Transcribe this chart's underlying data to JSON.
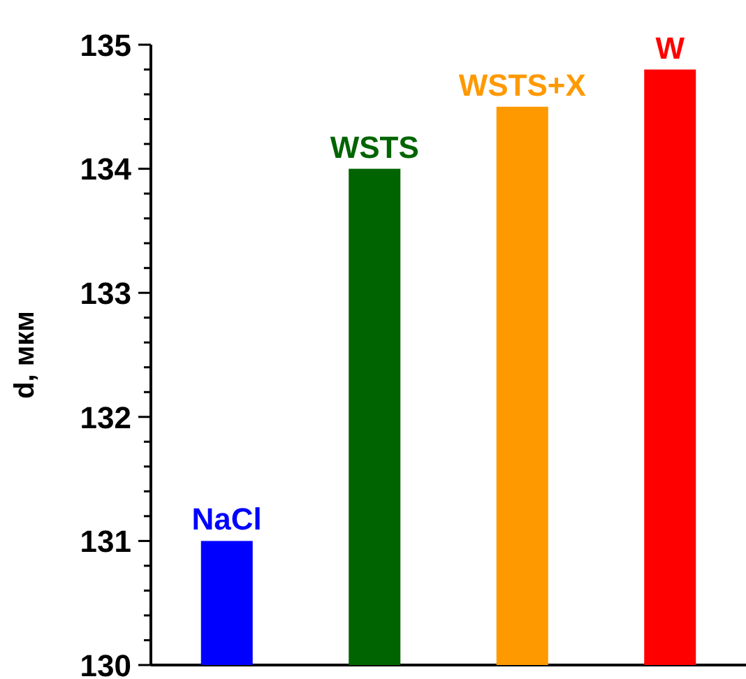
{
  "chart_data": {
    "type": "bar",
    "ylabel": "d, мкм",
    "categories": [
      "NaCl",
      "WSTS",
      "WSTS+X",
      "W"
    ],
    "values": [
      131,
      134,
      134.5,
      134.8
    ],
    "colors": [
      "#0000ff",
      "#006400",
      "#ff9900",
      "#ff0000"
    ],
    "ylim": [
      130,
      135
    ],
    "yticks": [
      130,
      {
        "value": 130.2,
        "label": null
      },
      {
        "value": 130.4,
        "label": null
      },
      {
        "value": 130.6,
        "label": null
      },
      {
        "value": 130.8,
        "label": null
      },
      131,
      {
        "value": 131.2,
        "label": null
      },
      {
        "value": 131.4,
        "label": null
      },
      {
        "value": 131.6,
        "label": null
      },
      {
        "value": 131.8,
        "label": null
      },
      132,
      {
        "value": 132.2,
        "label": null
      },
      {
        "value": 132.4,
        "label": null
      },
      {
        "value": 132.6,
        "label": null
      },
      {
        "value": 132.8,
        "label": null
      },
      133,
      {
        "value": 133.2,
        "label": null
      },
      {
        "value": 133.4,
        "label": null
      },
      {
        "value": 133.6,
        "label": null
      },
      {
        "value": 133.8,
        "label": null
      },
      134,
      {
        "value": 134.2,
        "label": null
      },
      {
        "value": 134.4,
        "label": null
      },
      {
        "value": 134.6,
        "label": null
      },
      {
        "value": 134.8,
        "label": null
      },
      135
    ],
    "grid": false
  }
}
